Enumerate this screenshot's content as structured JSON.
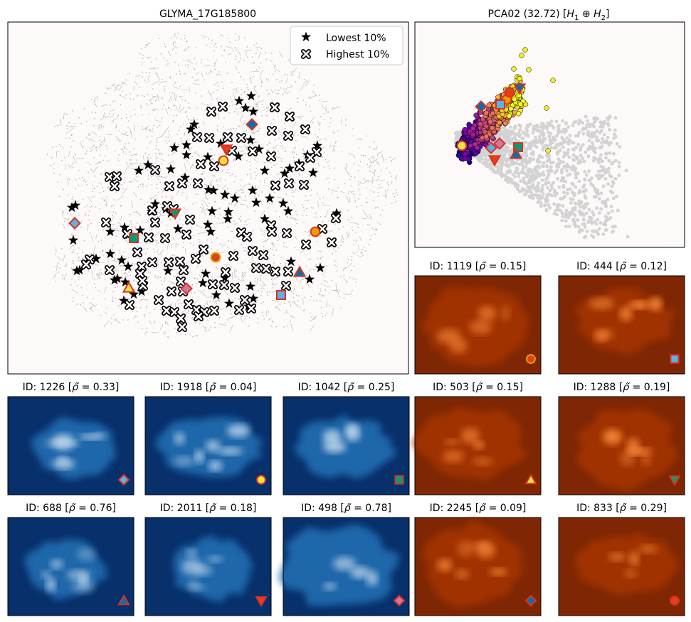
{
  "main_panel": {
    "title": "GLYMA_17G185800",
    "legend": {
      "lowest": "Lowest 10%",
      "highest": "Highest 10%",
      "position": "upper-right"
    },
    "background": "#fdf9f8",
    "cloud_color": "#9e9e9e",
    "markers": [
      {
        "shape": "diamond",
        "fill": "#56b4e9",
        "edge": "#e03020",
        "x": 105,
        "y": 314
      },
      {
        "shape": "square",
        "fill": "#009e73",
        "edge": "#e03020",
        "x": 188,
        "y": 335
      },
      {
        "shape": "triangle_up",
        "fill": "#f0e442",
        "edge": "#e03020",
        "x": 181,
        "y": 405
      },
      {
        "shape": "triangle_down",
        "fill": "#009e73",
        "edge": "#e03020",
        "x": 246,
        "y": 300
      },
      {
        "shape": "diamond",
        "fill": "#cc79a7",
        "edge": "#e03020",
        "x": 262,
        "y": 406
      },
      {
        "shape": "circle",
        "fill": "#e0401a",
        "edge": "#e0a000",
        "x": 303,
        "y": 362
      },
      {
        "shape": "circle",
        "fill": "#f0e442",
        "edge": "#e03020",
        "x": 314,
        "y": 226
      },
      {
        "shape": "triangle_down",
        "fill": "#e0401a",
        "edge": "#e03020",
        "x": 318,
        "y": 210
      },
      {
        "shape": "diamond",
        "fill": "#0072b2",
        "edge": "#e03020",
        "x": 354,
        "y": 175
      },
      {
        "shape": "square",
        "fill": "#56b4e9",
        "edge": "#e03020",
        "x": 395,
        "y": 415
      },
      {
        "shape": "triangle_up",
        "fill": "#0072b2",
        "edge": "#e03020",
        "x": 421,
        "y": 383
      },
      {
        "shape": "circle",
        "fill": "#e69f00",
        "edge": "#e03020",
        "x": 443,
        "y": 326
      }
    ]
  },
  "pca_panel": {
    "title_text": "PCA02 (32.72) [",
    "title_math": "H",
    "title_sub1": "1",
    "title_op": " ⊕ ",
    "title_sub2": "2",
    "title_end": "]",
    "background": "#fdf9f8",
    "gray": "#d3d3d3",
    "markers": [
      {
        "shape": "diamond",
        "fill": "#0072b2",
        "edge": "#e03020",
        "x": 676,
        "y": 150
      },
      {
        "shape": "circle",
        "fill": "#e69f00",
        "edge": "#e03020",
        "x": 712,
        "y": 140
      },
      {
        "shape": "circle",
        "fill": "#e0401a",
        "edge": "#e03020",
        "x": 716,
        "y": 130
      },
      {
        "shape": "triangle_down",
        "fill": "#0072b2",
        "edge": "#e03020",
        "x": 730,
        "y": 124
      },
      {
        "shape": "square",
        "fill": "#56b4e9",
        "edge": "#e03020",
        "x": 703,
        "y": 147
      },
      {
        "shape": "circle",
        "fill": "#f0e442",
        "edge": "#e03020",
        "x": 649,
        "y": 205
      },
      {
        "shape": "diamond",
        "fill": "#56b4e9",
        "edge": "#e03020",
        "x": 690,
        "y": 208
      },
      {
        "shape": "diamond",
        "fill": "#cc79a7",
        "edge": "#e03020",
        "x": 702,
        "y": 202
      },
      {
        "shape": "square",
        "fill": "#009e73",
        "edge": "#e03020",
        "x": 728,
        "y": 207
      },
      {
        "shape": "triangle_down",
        "fill": "#e0401a",
        "edge": "#e03020",
        "x": 695,
        "y": 225
      },
      {
        "shape": "triangle_up",
        "fill": "#0072b2",
        "edge": "#e03020",
        "x": 725,
        "y": 217
      }
    ]
  },
  "heatmaps": [
    {
      "title_id": "ID: 1119 [",
      "title_rho": "0.15",
      "cmap": "orange",
      "marker": {
        "shape": "circle",
        "fill": "#e0401a",
        "edge": "#e0a000"
      }
    },
    {
      "title_id": "ID: 444 [",
      "title_rho": "0.12",
      "cmap": "orange",
      "marker": {
        "shape": "square",
        "fill": "#56b4e9",
        "edge": "#e03020"
      }
    },
    {
      "title_id": "ID: 1226 [",
      "title_rho": "0.33",
      "cmap": "blue",
      "marker": {
        "shape": "diamond",
        "fill": "#56b4e9",
        "edge": "#e03020"
      }
    },
    {
      "title_id": "ID: 1918 [",
      "title_rho": "0.04",
      "cmap": "blue",
      "marker": {
        "shape": "circle",
        "fill": "#f0e442",
        "edge": "#e03020"
      }
    },
    {
      "title_id": "ID: 1042 [",
      "title_rho": "0.25",
      "cmap": "blue",
      "marker": {
        "shape": "square",
        "fill": "#009e73",
        "edge": "#e03020"
      }
    },
    {
      "title_id": "ID: 503 [",
      "title_rho": "0.15",
      "cmap": "orange",
      "marker": {
        "shape": "triangle_up",
        "fill": "#f0e442",
        "edge": "#e03020"
      }
    },
    {
      "title_id": "ID: 1288 [",
      "title_rho": "0.19",
      "cmap": "orange",
      "marker": {
        "shape": "triangle_down",
        "fill": "#009e73",
        "edge": "#e03020"
      }
    },
    {
      "title_id": "ID: 688 [",
      "title_rho": "0.76",
      "cmap": "blue",
      "marker": {
        "shape": "triangle_up",
        "fill": "#0072b2",
        "edge": "#e03020"
      }
    },
    {
      "title_id": "ID: 2011 [",
      "title_rho": "0.18",
      "cmap": "blue",
      "marker": {
        "shape": "triangle_down",
        "fill": "#e0401a",
        "edge": "#e03020"
      }
    },
    {
      "title_id": "ID: 498 [",
      "title_rho": "0.78",
      "cmap": "blue",
      "marker": {
        "shape": "diamond",
        "fill": "#cc79a7",
        "edge": "#e03020"
      }
    },
    {
      "title_id": "ID: 2245 [",
      "title_rho": "0.09",
      "cmap": "orange",
      "marker": {
        "shape": "diamond",
        "fill": "#0072b2",
        "edge": "#e03020"
      }
    },
    {
      "title_id": "ID: 833 [",
      "title_rho": "0.29",
      "cmap": "orange",
      "marker": {
        "shape": "circle",
        "fill": "#e0401a",
        "edge": "#e03020"
      }
    }
  ],
  "colormaps": {
    "orange_bg": "#7f2704",
    "orange_hot": "#fd8d3c",
    "blue_bg": "#08306b",
    "blue_hot": "#c6dbef"
  },
  "chart_data": {
    "type": "scatter",
    "title": "GLYMA_17G185800",
    "series": [
      {
        "name": "Lowest 10%",
        "marker": "star"
      },
      {
        "name": "Highest 10%",
        "marker": "x-thick"
      }
    ]
  }
}
